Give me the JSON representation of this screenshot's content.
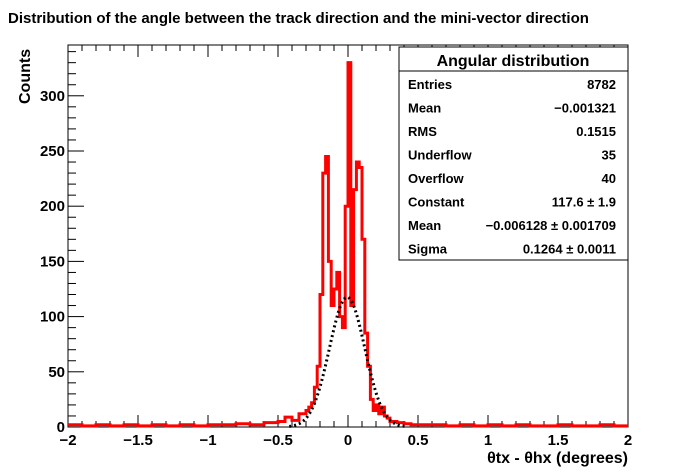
{
  "chart_data": {
    "type": "histogram",
    "title": "Distribution of the angle between the track direction and the mini-vector direction",
    "xlabel": "θtx - θhx (degrees)",
    "ylabel": "Counts",
    "xlim": [
      -2,
      2
    ],
    "ylim": [
      0,
      346
    ],
    "x_ticks": [
      -2,
      -1.5,
      -1,
      -0.5,
      0,
      0.5,
      1,
      1.5,
      2
    ],
    "x_tick_labels": [
      "−2",
      "−1.5",
      "−1",
      "−0.5",
      "0",
      "0.5",
      "1",
      "1.5",
      "2"
    ],
    "y_ticks": [
      0,
      50,
      100,
      150,
      200,
      250,
      300
    ],
    "y_tick_labels": [
      "0",
      "50",
      "100",
      "150",
      "200",
      "250",
      "300"
    ],
    "histogram": {
      "name": "",
      "color": "#ff0000",
      "x": [
        -2.0,
        -1.9,
        -1.8,
        -1.7,
        -1.6,
        -1.5,
        -1.4,
        -1.3,
        -1.2,
        -1.1,
        -1.0,
        -0.9,
        -0.8,
        -0.7,
        -0.6,
        -0.5,
        -0.45,
        -0.4,
        -0.35,
        -0.3,
        -0.28,
        -0.26,
        -0.24,
        -0.22,
        -0.2,
        -0.18,
        -0.16,
        -0.14,
        -0.12,
        -0.1,
        -0.08,
        -0.06,
        -0.04,
        -0.02,
        0.0,
        0.02,
        0.04,
        0.06,
        0.08,
        0.1,
        0.12,
        0.14,
        0.16,
        0.18,
        0.2,
        0.22,
        0.24,
        0.26,
        0.28,
        0.3,
        0.35,
        0.4,
        0.45,
        0.5,
        0.6,
        0.7,
        0.8,
        0.9,
        1.0,
        1.1,
        1.2,
        1.3,
        1.4,
        1.5,
        1.6,
        1.7,
        1.8,
        1.9,
        2.0
      ],
      "y": [
        2,
        1,
        2,
        1,
        2,
        1,
        2,
        1,
        2,
        1,
        2,
        2,
        3,
        2,
        4,
        5,
        9,
        6,
        12,
        15,
        18,
        22,
        36,
        55,
        120,
        230,
        245,
        150,
        110,
        125,
        140,
        100,
        90,
        200,
        330,
        110,
        215,
        240,
        235,
        170,
        85,
        55,
        25,
        15,
        20,
        12,
        18,
        10,
        8,
        5,
        4,
        3,
        2,
        2,
        2,
        1,
        2,
        1,
        2,
        1,
        2,
        1,
        1,
        2,
        1,
        1,
        2,
        1,
        1
      ]
    },
    "fit": {
      "name": "",
      "type": "gaussian",
      "style": "dotted",
      "color": "#000000",
      "constant": 117.6,
      "mean": -0.006128,
      "sigma": 0.1264
    },
    "legend_position": "top-right",
    "grid": false
  },
  "stats_box": {
    "title": "Angular distribution",
    "rows": [
      {
        "label": "Entries",
        "value": "8782"
      },
      {
        "label": "Mean",
        "value": "−0.001321"
      },
      {
        "label": "RMS",
        "value": "0.1515"
      },
      {
        "label": "Underflow",
        "value": "35"
      },
      {
        "label": "Overflow",
        "value": "40"
      },
      {
        "label": "Constant",
        "value": "117.6 ± 1.9"
      },
      {
        "label": "Mean",
        "value": "−0.006128 ± 0.001709"
      },
      {
        "label": "Sigma",
        "value": "0.1264 ± 0.0011"
      }
    ]
  },
  "colors": {
    "histogram": "#ff0000",
    "fit": "#000000",
    "stats_title": "#000066",
    "axis": "#000000"
  }
}
